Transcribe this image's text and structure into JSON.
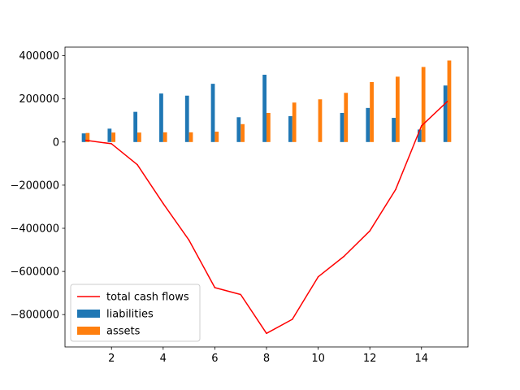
{
  "chart_data": {
    "type": "bar",
    "title": "",
    "xlabel": "",
    "ylabel": "",
    "x": [
      1,
      2,
      3,
      4,
      5,
      6,
      7,
      8,
      9,
      10,
      11,
      12,
      13,
      14,
      15
    ],
    "xlim": [
      0.2,
      15.8
    ],
    "ylim": [
      -950000,
      440000
    ],
    "xticks": [
      2,
      4,
      6,
      8,
      10,
      12,
      14
    ],
    "yticks": [
      -800000,
      -600000,
      -400000,
      -200000,
      0,
      200000,
      400000
    ],
    "xtick_labels": [
      "2",
      "4",
      "6",
      "8",
      "10",
      "12",
      "14"
    ],
    "ytick_labels": [
      "−800000",
      "−600000",
      "−400000",
      "−200000",
      "0",
      "200000",
      "400000"
    ],
    "series": [
      {
        "name": "liabilities",
        "type": "bar",
        "color": "#1f77b4",
        "values": [
          40000,
          62000,
          140000,
          225000,
          215000,
          270000,
          115000,
          312000,
          120000,
          0,
          135000,
          158000,
          112000,
          58000,
          262000
        ]
      },
      {
        "name": "assets",
        "type": "bar",
        "color": "#ff7f0e",
        "values": [
          42000,
          44000,
          44000,
          45000,
          45000,
          48000,
          83000,
          135000,
          183000,
          198000,
          228000,
          278000,
          303000,
          348000,
          378000
        ]
      },
      {
        "name": "total cash flows",
        "type": "line",
        "color": "#ff0000",
        "values": [
          8000,
          -8000,
          -105000,
          -285000,
          -455000,
          -675000,
          -707000,
          -887000,
          -822000,
          -625000,
          -530000,
          -412000,
          -220000,
          75000,
          188000
        ]
      }
    ],
    "legend": {
      "position": "lower-left",
      "entries": [
        "total cash flows",
        "liabilities",
        "assets"
      ]
    },
    "grid": false
  }
}
